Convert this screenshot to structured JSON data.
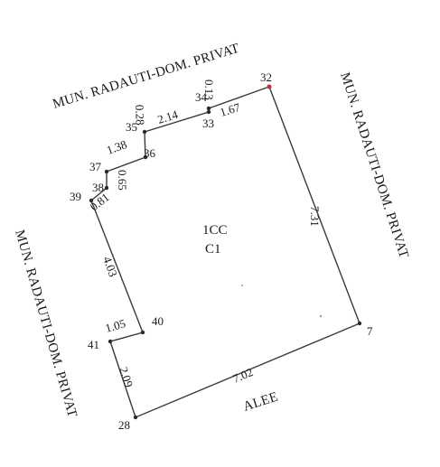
{
  "parcel": {
    "id": "1CC",
    "category": "C1",
    "vertices": [
      {
        "label": "32",
        "color": "#c0303a"
      },
      {
        "label": "7"
      },
      {
        "label": "28"
      },
      {
        "label": "41"
      },
      {
        "label": "40"
      },
      {
        "label": "39"
      },
      {
        "label": "38"
      },
      {
        "label": "37"
      },
      {
        "label": "36"
      },
      {
        "label": "35"
      },
      {
        "label": "34"
      },
      {
        "label": "33"
      }
    ],
    "segments": [
      {
        "length": "7.31"
      },
      {
        "length": "7.02"
      },
      {
        "length": "2.09"
      },
      {
        "length": "1.05"
      },
      {
        "length": "4.03"
      },
      {
        "length": "0.81"
      },
      {
        "length": "0.65"
      },
      {
        "length": "1.38"
      },
      {
        "length": "0.28"
      },
      {
        "length": "2.14"
      },
      {
        "length": "0.13"
      },
      {
        "length": "1.67"
      }
    ]
  },
  "neighbors": {
    "top": "MUN. RADAUTI-DOM. PRIVAT",
    "right": "MUN. RADAUTI-DOM. PRIVAT",
    "left": "MUN. RADAUTI-DOM. PRIVAT",
    "bottom": "ALEE"
  }
}
